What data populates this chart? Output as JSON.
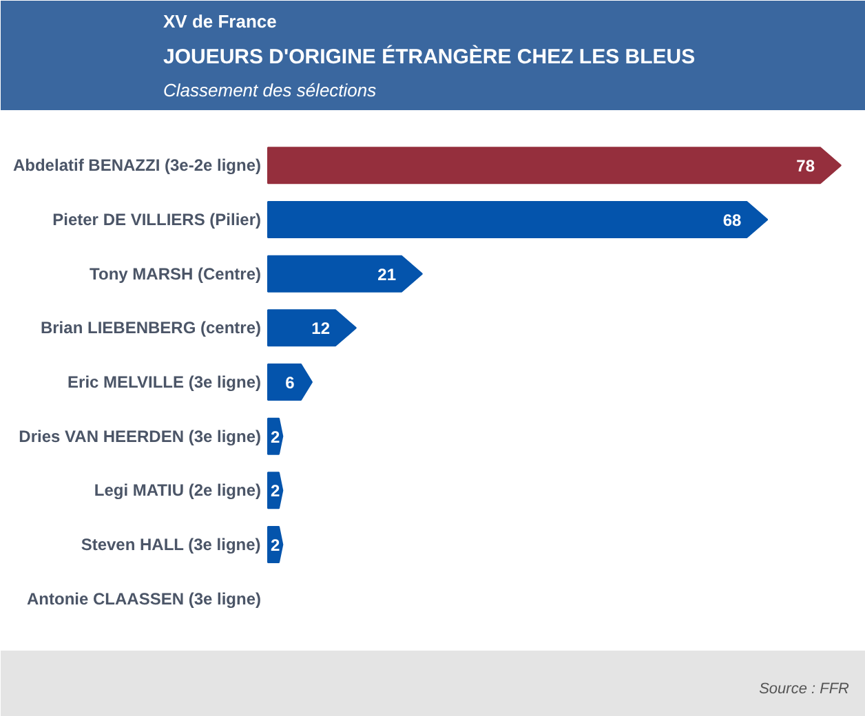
{
  "chart_data": {
    "type": "bar",
    "orientation": "horizontal",
    "title": "JOUEURS D'ORIGINE ÉTRANGÈRE CHEZ LES BLEUS",
    "subtitle": "Classement des sélections",
    "annotations": [
      "XV de France",
      "Source : FFR"
    ],
    "categories": [
      "Abdelatif BENAZZI (3e-2e ligne)",
      "Pieter DE VILLIERS (Pilier)",
      "Tony MARSH (Centre)",
      "Brian LIEBENBERG (centre)",
      "Eric MELVILLE (3e ligne)",
      "Dries VAN HEERDEN (3e ligne)",
      "Legi MATIU (2e ligne)",
      "Steven HALL (3e ligne)",
      "Antonie CLAASSEN (3e ligne)"
    ],
    "values": [
      78,
      68,
      21,
      12,
      6,
      2,
      2,
      2,
      null
    ],
    "colors": [
      "#952f3d",
      "#0454ac",
      "#0454ac",
      "#0454ac",
      "#0454ac",
      "#0454ac",
      "#0454ac",
      "#0454ac",
      "#0454ac"
    ],
    "data_labels": true
  }
}
